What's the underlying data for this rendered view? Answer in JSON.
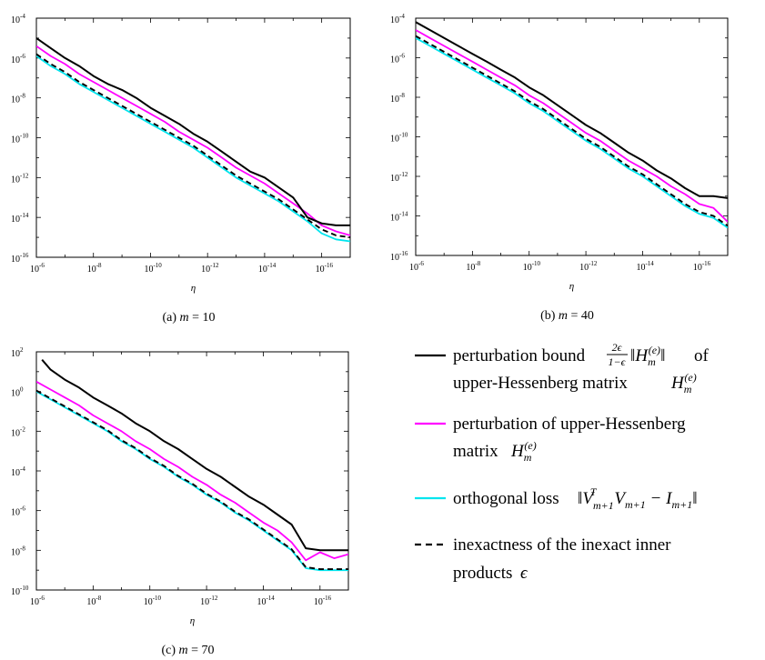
{
  "legend": {
    "entries": [
      {
        "key": "bound",
        "color": "#000000",
        "dash": false,
        "line1": "perturbation bound",
        "frac_num": "2ϵ",
        "frac_den": "1−ϵ",
        "norm_expr": "‖H",
        "norm_sub": "m",
        "norm_sup": "(e)",
        "norm_close": "‖",
        "of": "of",
        "line2": "upper-Hessenberg matrix",
        "mat": "H",
        "mat_sub": "m",
        "mat_sup": "(e)"
      },
      {
        "key": "pert",
        "color": "#ff00ff",
        "dash": false,
        "line1": "perturbation of upper-Hessenberg",
        "line2": "matrix",
        "mat": "H",
        "mat_sub": "m",
        "mat_sup": "(e)"
      },
      {
        "key": "orth",
        "color": "#00e5ee",
        "dash": false,
        "line1": "orthogonal loss",
        "expr_a": "‖V",
        "expr_a_sub": "m+1",
        "expr_a_sup": "T",
        "expr_b": "V",
        "expr_b_sub": "m+1",
        "expr_c": " − I",
        "expr_c_sub": "m+1",
        "expr_close": "‖"
      },
      {
        "key": "inex",
        "color": "#000000",
        "dash": true,
        "line1": "inexactness of the inexact inner",
        "line2": "products",
        "eps": "ϵ"
      }
    ]
  },
  "chart_data": [
    {
      "id": "a",
      "type": "line",
      "caption": "(a)  m = 10",
      "caption_prefix": "(a)",
      "caption_var": "m",
      "caption_value": "= 10",
      "xlabel": "η",
      "xscale": "log-reversed",
      "yscale": "log",
      "xlim_exp": [
        -6,
        -17
      ],
      "ylim_exp": [
        -16,
        -4
      ],
      "x_ticks": [
        "10",
        "10",
        "10",
        "10",
        "10",
        "10"
      ],
      "x_tick_exps": [
        "-6",
        "-8",
        "-10",
        "-12",
        "-14",
        "-16"
      ],
      "y_ticks": [
        "10",
        "10",
        "10",
        "10",
        "10",
        "10",
        "10"
      ],
      "y_tick_exps": [
        "-16",
        "-14",
        "-12",
        "-10",
        "-8",
        "-6",
        "-4"
      ],
      "series": [
        {
          "name": "bound",
          "x_exp": [
            -6,
            -6.5,
            -7,
            -7.5,
            -8,
            -8.5,
            -9,
            -9.5,
            -10,
            -10.5,
            -11,
            -11.5,
            -12,
            -12.5,
            -13,
            -13.5,
            -14,
            -14.5,
            -15,
            -15.5,
            -16,
            -16.5,
            -17
          ],
          "y_exp": [
            -5.0,
            -5.5,
            -6.0,
            -6.4,
            -6.9,
            -7.3,
            -7.6,
            -8.0,
            -8.5,
            -8.9,
            -9.3,
            -9.8,
            -10.2,
            -10.7,
            -11.2,
            -11.7,
            -12.0,
            -12.5,
            -13.0,
            -14.0,
            -14.3,
            -14.4,
            -14.4
          ]
        },
        {
          "name": "pert",
          "x_exp": [
            -6,
            -6.5,
            -7,
            -7.5,
            -8,
            -8.5,
            -9,
            -9.5,
            -10,
            -10.5,
            -11,
            -11.5,
            -12,
            -12.5,
            -13,
            -13.5,
            -14,
            -14.5,
            -15,
            -15.5,
            -16,
            -16.5,
            -17
          ],
          "y_exp": [
            -5.4,
            -5.9,
            -6.3,
            -6.8,
            -7.2,
            -7.6,
            -8.0,
            -8.4,
            -8.8,
            -9.2,
            -9.7,
            -10.1,
            -10.5,
            -11.0,
            -11.5,
            -11.9,
            -12.3,
            -12.8,
            -13.3,
            -13.8,
            -14.4,
            -14.7,
            -14.9
          ]
        },
        {
          "name": "orth",
          "x_exp": [
            -6,
            -6.5,
            -7,
            -7.5,
            -8,
            -8.5,
            -9,
            -9.5,
            -10,
            -10.5,
            -11,
            -11.5,
            -12,
            -12.5,
            -13,
            -13.5,
            -14,
            -14.5,
            -15,
            -15.5,
            -16,
            -16.5,
            -17
          ],
          "y_exp": [
            -5.9,
            -6.4,
            -6.8,
            -7.3,
            -7.7,
            -8.1,
            -8.5,
            -8.9,
            -9.3,
            -9.7,
            -10.1,
            -10.5,
            -11.0,
            -11.5,
            -12.0,
            -12.4,
            -12.8,
            -13.2,
            -13.7,
            -14.2,
            -14.8,
            -15.1,
            -15.2
          ]
        },
        {
          "name": "inex",
          "x_exp": [
            -6,
            -6.5,
            -7,
            -7.5,
            -8,
            -8.5,
            -9,
            -9.5,
            -10,
            -10.5,
            -11,
            -11.5,
            -12,
            -12.5,
            -13,
            -13.5,
            -14,
            -14.5,
            -15,
            -15.5,
            -16,
            -16.5,
            -17
          ],
          "y_exp": [
            -5.8,
            -6.3,
            -6.7,
            -7.2,
            -7.6,
            -8.0,
            -8.4,
            -8.8,
            -9.2,
            -9.6,
            -10.0,
            -10.4,
            -10.9,
            -11.4,
            -11.9,
            -12.3,
            -12.7,
            -13.1,
            -13.6,
            -14.1,
            -14.6,
            -14.9,
            -15.0
          ]
        }
      ]
    },
    {
      "id": "b",
      "type": "line",
      "caption": "(b)  m = 40",
      "caption_prefix": "(b)",
      "caption_var": "m",
      "caption_value": "= 40",
      "xlabel": "η",
      "xscale": "log-reversed",
      "yscale": "log",
      "xlim_exp": [
        -6,
        -17
      ],
      "ylim_exp": [
        -16,
        -4
      ],
      "x_ticks": [
        "10",
        "10",
        "10",
        "10",
        "10",
        "10"
      ],
      "x_tick_exps": [
        "-6",
        "-8",
        "-10",
        "-12",
        "-14",
        "-16"
      ],
      "y_ticks": [
        "10",
        "10",
        "10",
        "10",
        "10",
        "10",
        "10"
      ],
      "y_tick_exps": [
        "-16",
        "-14",
        "-12",
        "-10",
        "-8",
        "-6",
        "-4"
      ],
      "series": [
        {
          "name": "bound",
          "x_exp": [
            -6,
            -6.5,
            -7,
            -7.5,
            -8,
            -8.5,
            -9,
            -9.5,
            -10,
            -10.5,
            -11,
            -11.5,
            -12,
            -12.5,
            -13,
            -13.5,
            -14,
            -14.5,
            -15,
            -15.5,
            -16,
            -16.5,
            -17
          ],
          "y_exp": [
            -4.2,
            -4.6,
            -5.0,
            -5.4,
            -5.8,
            -6.2,
            -6.6,
            -7.0,
            -7.5,
            -7.9,
            -8.4,
            -8.9,
            -9.4,
            -9.8,
            -10.3,
            -10.8,
            -11.2,
            -11.7,
            -12.1,
            -12.6,
            -13.0,
            -13.0,
            -13.1
          ]
        },
        {
          "name": "pert",
          "x_exp": [
            -6,
            -6.5,
            -7,
            -7.5,
            -8,
            -8.5,
            -9,
            -9.5,
            -10,
            -10.5,
            -11,
            -11.5,
            -12,
            -12.5,
            -13,
            -13.5,
            -14,
            -14.5,
            -15,
            -15.5,
            -16,
            -16.5,
            -17
          ],
          "y_exp": [
            -4.6,
            -5.0,
            -5.4,
            -5.8,
            -6.2,
            -6.6,
            -7.0,
            -7.4,
            -7.9,
            -8.3,
            -8.8,
            -9.3,
            -9.8,
            -10.2,
            -10.7,
            -11.2,
            -11.6,
            -12.0,
            -12.5,
            -12.9,
            -13.4,
            -13.6,
            -14.3
          ]
        },
        {
          "name": "orth",
          "x_exp": [
            -6,
            -6.5,
            -7,
            -7.5,
            -8,
            -8.5,
            -9,
            -9.5,
            -10,
            -10.5,
            -11,
            -11.5,
            -12,
            -12.5,
            -13,
            -13.5,
            -14,
            -14.5,
            -15,
            -15.5,
            -16,
            -16.5,
            -17
          ],
          "y_exp": [
            -5.0,
            -5.4,
            -5.8,
            -6.2,
            -6.6,
            -7.0,
            -7.4,
            -7.8,
            -8.3,
            -8.7,
            -9.2,
            -9.7,
            -10.2,
            -10.6,
            -11.1,
            -11.6,
            -12.0,
            -12.5,
            -13.0,
            -13.5,
            -13.9,
            -14.1,
            -14.6
          ]
        },
        {
          "name": "inex",
          "x_exp": [
            -6,
            -6.5,
            -7,
            -7.5,
            -8,
            -8.5,
            -9,
            -9.5,
            -10,
            -10.5,
            -11,
            -11.5,
            -12,
            -12.5,
            -13,
            -13.5,
            -14,
            -14.5,
            -15,
            -15.5,
            -16,
            -16.5,
            -17
          ],
          "y_exp": [
            -4.9,
            -5.3,
            -5.7,
            -6.1,
            -6.5,
            -6.9,
            -7.3,
            -7.7,
            -8.2,
            -8.6,
            -9.1,
            -9.6,
            -10.1,
            -10.5,
            -11.0,
            -11.5,
            -11.9,
            -12.4,
            -12.9,
            -13.4,
            -13.8,
            -14.0,
            -14.5
          ]
        }
      ]
    },
    {
      "id": "c",
      "type": "line",
      "caption": "(c)  m = 70",
      "caption_prefix": "(c)",
      "caption_var": "m",
      "caption_value": "= 70",
      "xlabel": "η",
      "xscale": "log-reversed",
      "yscale": "log",
      "xlim_exp": [
        -6,
        -17
      ],
      "ylim_exp": [
        -10,
        2
      ],
      "x_ticks": [
        "10",
        "10",
        "10",
        "10",
        "10",
        "10"
      ],
      "x_tick_exps": [
        "-6",
        "-8",
        "-10",
        "-12",
        "-14",
        "-16"
      ],
      "y_ticks": [
        "10",
        "10",
        "10",
        "10",
        "10",
        "10",
        "10"
      ],
      "y_tick_exps": [
        "-10",
        "-8",
        "-6",
        "-4",
        "-2",
        "0",
        "2"
      ],
      "series": [
        {
          "name": "bound",
          "x_exp": [
            -6.2,
            -6.5,
            -7,
            -7.5,
            -8,
            -8.5,
            -9,
            -9.5,
            -10,
            -10.5,
            -11,
            -11.5,
            -12,
            -12.5,
            -13,
            -13.5,
            -14,
            -14.5,
            -15,
            -15.5,
            -16,
            -16.5,
            -17
          ],
          "y_exp": [
            1.6,
            1.1,
            0.6,
            0.2,
            -0.3,
            -0.7,
            -1.1,
            -1.6,
            -2.0,
            -2.5,
            -2.9,
            -3.4,
            -3.9,
            -4.3,
            -4.8,
            -5.3,
            -5.7,
            -6.2,
            -6.7,
            -7.9,
            -8.0,
            -8.0,
            -8.0
          ]
        },
        {
          "name": "pert",
          "x_exp": [
            -6,
            -6.5,
            -7,
            -7.5,
            -8,
            -8.5,
            -9,
            -9.5,
            -10,
            -10.5,
            -11,
            -11.5,
            -12,
            -12.5,
            -13,
            -13.5,
            -14,
            -14.5,
            -15,
            -15.5,
            -16,
            -16.5,
            -17
          ],
          "y_exp": [
            0.5,
            0.1,
            -0.3,
            -0.7,
            -1.2,
            -1.6,
            -2.0,
            -2.5,
            -2.9,
            -3.4,
            -3.8,
            -4.3,
            -4.7,
            -5.2,
            -5.6,
            -6.1,
            -6.6,
            -7.0,
            -7.6,
            -8.5,
            -8.1,
            -8.4,
            -8.2
          ]
        },
        {
          "name": "orth",
          "x_exp": [
            -6,
            -6.5,
            -7,
            -7.5,
            -8,
            -8.5,
            -9,
            -9.5,
            -10,
            -10.5,
            -11,
            -11.5,
            -12,
            -12.5,
            -13,
            -13.5,
            -14,
            -14.5,
            -15,
            -15.5,
            -16,
            -16.5,
            -17
          ],
          "y_exp": [
            0.0,
            -0.4,
            -0.8,
            -1.2,
            -1.6,
            -2.0,
            -2.5,
            -2.9,
            -3.4,
            -3.8,
            -4.3,
            -4.7,
            -5.2,
            -5.6,
            -6.1,
            -6.5,
            -7.0,
            -7.5,
            -8.0,
            -8.9,
            -9.0,
            -9.0,
            -9.0
          ]
        },
        {
          "name": "inex",
          "x_exp": [
            -6,
            -6.5,
            -7,
            -7.5,
            -8,
            -8.5,
            -9,
            -9.5,
            -10,
            -10.5,
            -11,
            -11.5,
            -12,
            -12.5,
            -13,
            -13.5,
            -14,
            -14.5,
            -15,
            -15.5,
            -16,
            -16.5,
            -17
          ],
          "y_exp": [
            0.05,
            -0.35,
            -0.75,
            -1.15,
            -1.55,
            -1.95,
            -2.45,
            -2.85,
            -3.35,
            -3.75,
            -4.25,
            -4.65,
            -5.15,
            -5.55,
            -6.05,
            -6.45,
            -6.95,
            -7.45,
            -7.95,
            -8.85,
            -8.95,
            -8.95,
            -8.95
          ]
        }
      ]
    }
  ]
}
